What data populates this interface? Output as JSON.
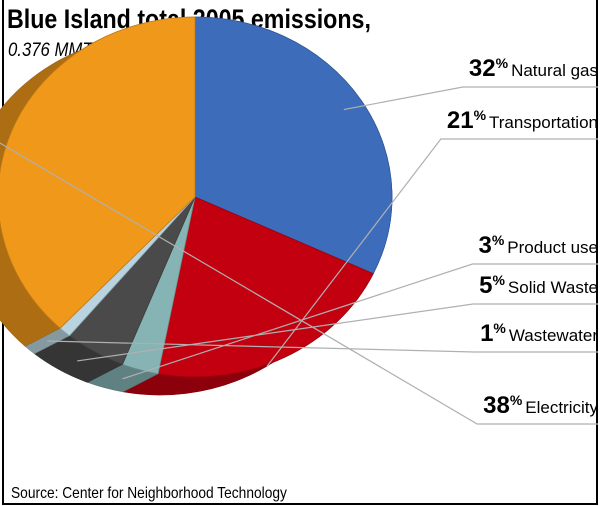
{
  "title": "Blue Island total 2005 emissions,",
  "subtitle": "0.376 MMT CO2e",
  "source": "Source: Center for Neighborhood Technology",
  "chart_data": {
    "type": "pie",
    "title": "Blue Island total 2005 emissions,",
    "subtitle": "0.376 MMT CO2e",
    "unit": "%",
    "slices": [
      {
        "label": "Natural gas",
        "value": 32,
        "color": "#3d6dba"
      },
      {
        "label": "Transportation",
        "value": 21,
        "color": "#c2000f"
      },
      {
        "label": "Product use",
        "value": 3,
        "color": "#86b3b3"
      },
      {
        "label": "Solid Waste",
        "value": 5,
        "color": "#4a4a4a"
      },
      {
        "label": "Wastewater",
        "value": 1,
        "color": "#b9d4e0"
      },
      {
        "label": "Electricity",
        "value": 38,
        "color": "#f0981a"
      }
    ]
  }
}
